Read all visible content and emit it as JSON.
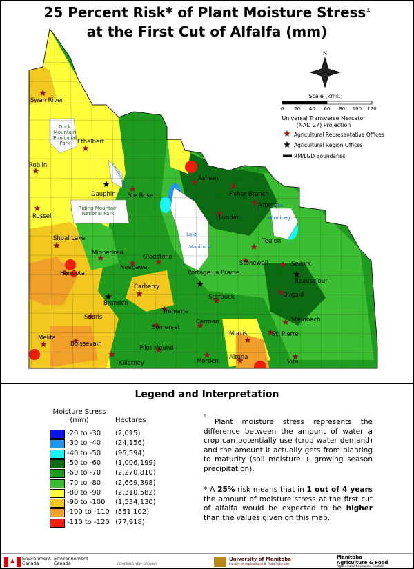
{
  "header": {
    "title_line1": "25 Percent Risk* of Plant Moisture Stress",
    "title_superscript": "1",
    "title_line2": "at the First Cut of Alfalfa (mm)"
  },
  "map": {
    "north_label": "N",
    "scale_title": "Scale (kms.)",
    "scale_ticks": [
      0,
      20,
      40,
      60,
      80,
      100,
      120
    ],
    "projection_line1": "Universal Transverse Mercator",
    "projection_line2": "(NAD 27) Projection",
    "legend": [
      "Agricultural Representative Offices",
      "Agricultural Region Offices",
      "RM/LGD Boundaries"
    ],
    "parks": [
      "Duck Mountain Provincial Park",
      "Riding Mountain National Park"
    ],
    "lakes": [
      [
        "Lake",
        "Manitoba"
      ],
      [
        "Lake",
        "Winnipeg"
      ],
      [
        "Dauphin Lake"
      ]
    ],
    "places": [
      "Swan River",
      "Ethelbert",
      "Roblin",
      "Dauphin",
      "Ste Rose",
      "Ashern",
      "Fisher Branch",
      "Arborg",
      "Lundar",
      "Russell",
      "Shoal Lake",
      "Minnedosa",
      "Gladstone",
      "Neepawa",
      "Teulon",
      "Stonewall",
      "Selkirk",
      "Hamiota",
      "Portage La Prairie",
      "Beausejour",
      "Carberry",
      "Dugald",
      "Brandon",
      "Starbuck",
      "Treherne",
      "Souris",
      "Carman",
      "Steinbach",
      "Somerset",
      "Morris",
      "St. Pierre",
      "Melita",
      "Boissevain",
      "Pilot Mound",
      "Altona",
      "Killarney",
      "Morden",
      "Vita"
    ]
  },
  "legend": {
    "title": "Legend and Interpretation",
    "col1_header": [
      "Moisture Stress",
      "(mm)"
    ],
    "col2_header": "Hectares",
    "rows": [
      {
        "range": "-20 to -30",
        "hectares": "(2,015)",
        "color": "#0a14e6"
      },
      {
        "range": "-30 to -40",
        "hectares": "(24,156)",
        "color": "#2196f0"
      },
      {
        "range": "-40 to -50",
        "hectares": "(95,594)",
        "color": "#19f5f5"
      },
      {
        "range": "-50 to -60",
        "hectares": "(1,006,199)",
        "color": "#0b6b12"
      },
      {
        "range": "-60 to -70",
        "hectares": "(2,270,810)",
        "color": "#1e9a1e"
      },
      {
        "range": "-70 to -80",
        "hectares": "(2,669,398)",
        "color": "#3cbe32"
      },
      {
        "range": "-80 to -90",
        "hectares": "(2,310,582)",
        "color": "#ffff3c"
      },
      {
        "range": "-90 to -100",
        "hectares": "(1,534,130)",
        "color": "#f2c81e"
      },
      {
        "range": "-100 to -110",
        "hectares": "(551,102)",
        "color": "#f0a028"
      },
      {
        "range": "-110 to -120",
        "hectares": "(77,918)",
        "color": "#f01e0a"
      }
    ]
  },
  "notes": {
    "footnote_mark": "1",
    "paragraph1": "Plant moisture stress represents the difference between the amount of water a crop can potentially use (crop water demand) and the amount it actually gets from planting to maturity (soil moisture + growing season precipitation).",
    "paragraph2": [
      "* A ",
      "25%",
      " risk means that in ",
      "1 out of 4 years",
      " the amount of moisture stress at the first cut of alfalfa would be expected to be ",
      "higher",
      " than the values given on this map."
    ]
  },
  "footer": {
    "env_en": "Environment Canada",
    "env_fr": "Environnement Canada",
    "cng": "COVERING NEW GROUND",
    "uofm": "University of Manitoba",
    "uofm_sub": "Faculty of Agricultural & Food Sciences",
    "mb": "Manitoba Agriculture & Food",
    "mb_sub": "Agricultural Resources Section"
  }
}
